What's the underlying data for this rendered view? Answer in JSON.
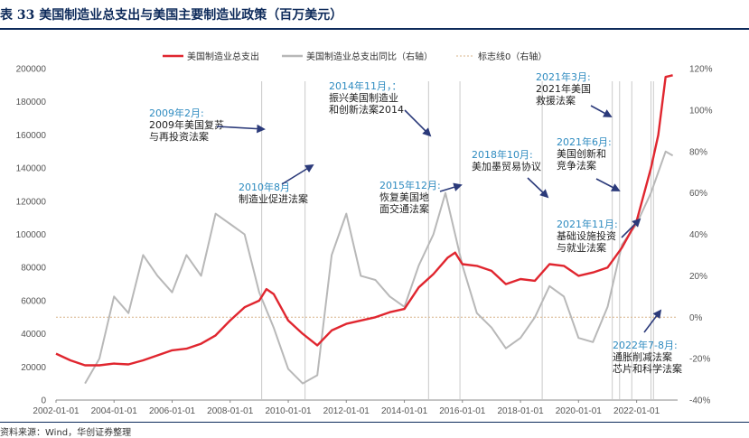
{
  "header": {
    "title": "表 33  美国制造业总支出与美国主要制造业政策（百万美元）",
    "source": "资料来源：Wind，华创证券整理"
  },
  "chart_data": {
    "type": "line",
    "title": "",
    "x_ticks": [
      "2002-01-01",
      "2004-01-01",
      "2006-01-01",
      "2008-01-01",
      "2010-01-01",
      "2012-01-01",
      "2014-01-01",
      "2016-01-01",
      "2018-01-01",
      "2020-01-01",
      "2022-01-01"
    ],
    "xlim": [
      "2002-01-01",
      "2023-06-01"
    ],
    "y_left": {
      "ticks": [
        0,
        20000,
        40000,
        60000,
        80000,
        100000,
        120000,
        140000,
        160000,
        180000,
        200000
      ],
      "lim": [
        0,
        200000
      ]
    },
    "y_right": {
      "ticks": [
        "-40%",
        "-20%",
        "0%",
        "20%",
        "40%",
        "60%",
        "80%",
        "100%",
        "120%"
      ],
      "lim": [
        -40,
        120
      ]
    },
    "legend": [
      "美国制造业总支出",
      "美国制造业总支出同比（右轴）",
      "标志线0（右轴）"
    ],
    "legend_position": "top-center",
    "series": [
      {
        "name": "美国制造业总支出",
        "axis": "left",
        "color": "#e0262f",
        "points": [
          [
            "2002-01-01",
            28000
          ],
          [
            "2002-07-01",
            24000
          ],
          [
            "2003-01-01",
            21000
          ],
          [
            "2003-07-01",
            21000
          ],
          [
            "2004-01-01",
            22000
          ],
          [
            "2004-07-01",
            21500
          ],
          [
            "2005-01-01",
            24000
          ],
          [
            "2005-07-01",
            27000
          ],
          [
            "2006-01-01",
            30000
          ],
          [
            "2006-07-01",
            31000
          ],
          [
            "2007-01-01",
            34000
          ],
          [
            "2007-07-01",
            39000
          ],
          [
            "2008-01-01",
            48000
          ],
          [
            "2008-07-01",
            56000
          ],
          [
            "2009-01-01",
            60000
          ],
          [
            "2009-04-01",
            67000
          ],
          [
            "2009-07-01",
            64000
          ],
          [
            "2010-01-01",
            48000
          ],
          [
            "2010-07-01",
            40000
          ],
          [
            "2011-01-01",
            33000
          ],
          [
            "2011-07-01",
            42000
          ],
          [
            "2012-01-01",
            46000
          ],
          [
            "2012-07-01",
            48000
          ],
          [
            "2013-01-01",
            50000
          ],
          [
            "2013-07-01",
            53000
          ],
          [
            "2014-01-01",
            55000
          ],
          [
            "2014-07-01",
            68000
          ],
          [
            "2015-01-01",
            76000
          ],
          [
            "2015-07-01",
            86000
          ],
          [
            "2015-10-01",
            89000
          ],
          [
            "2016-01-01",
            82000
          ],
          [
            "2016-07-01",
            81000
          ],
          [
            "2017-01-01",
            78000
          ],
          [
            "2017-07-01",
            70000
          ],
          [
            "2018-01-01",
            73000
          ],
          [
            "2018-07-01",
            72000
          ],
          [
            "2019-01-01",
            82000
          ],
          [
            "2019-07-01",
            81000
          ],
          [
            "2020-01-01",
            75000
          ],
          [
            "2020-07-01",
            77000
          ],
          [
            "2021-01-01",
            80000
          ],
          [
            "2021-07-01",
            92000
          ],
          [
            "2022-01-01",
            108000
          ],
          [
            "2022-07-01",
            140000
          ],
          [
            "2022-10-01",
            160000
          ],
          [
            "2023-01-01",
            195000
          ],
          [
            "2023-04-01",
            196000
          ]
        ]
      },
      {
        "name": "美国制造业总支出同比（右轴）",
        "axis": "right",
        "color": "#b8b8b8",
        "points": [
          [
            "2003-01-01",
            -32
          ],
          [
            "2003-07-01",
            -20
          ],
          [
            "2004-01-01",
            10
          ],
          [
            "2004-07-01",
            2
          ],
          [
            "2005-01-01",
            30
          ],
          [
            "2005-07-01",
            20
          ],
          [
            "2006-01-01",
            12
          ],
          [
            "2006-07-01",
            30
          ],
          [
            "2007-01-01",
            20
          ],
          [
            "2007-07-01",
            50
          ],
          [
            "2008-01-01",
            45
          ],
          [
            "2008-07-01",
            40
          ],
          [
            "2009-01-01",
            12
          ],
          [
            "2009-07-01",
            -5
          ],
          [
            "2010-01-01",
            -25
          ],
          [
            "2010-07-01",
            -32
          ],
          [
            "2011-01-01",
            -28
          ],
          [
            "2011-07-01",
            30
          ],
          [
            "2012-01-01",
            50
          ],
          [
            "2012-07-01",
            20
          ],
          [
            "2013-01-01",
            18
          ],
          [
            "2013-07-01",
            10
          ],
          [
            "2014-01-01",
            5
          ],
          [
            "2014-07-01",
            25
          ],
          [
            "2015-01-01",
            40
          ],
          [
            "2015-06-01",
            60
          ],
          [
            "2016-01-01",
            25
          ],
          [
            "2016-07-01",
            2
          ],
          [
            "2017-01-01",
            -5
          ],
          [
            "2017-07-01",
            -15
          ],
          [
            "2018-01-01",
            -10
          ],
          [
            "2018-07-01",
            0
          ],
          [
            "2019-01-01",
            15
          ],
          [
            "2019-07-01",
            10
          ],
          [
            "2020-01-01",
            -10
          ],
          [
            "2020-07-01",
            -12
          ],
          [
            "2021-01-01",
            5
          ],
          [
            "2021-07-01",
            35
          ],
          [
            "2022-01-01",
            45
          ],
          [
            "2022-07-01",
            60
          ],
          [
            "2023-01-01",
            80
          ],
          [
            "2023-04-01",
            78
          ]
        ]
      },
      {
        "name": "标志线0（右轴）",
        "axis": "right",
        "color": "#d8b48a",
        "points": [
          [
            "2002-01-01",
            0
          ],
          [
            "2023-06-01",
            0
          ]
        ]
      }
    ],
    "event_lines": [
      "2009-02-01",
      "2010-08-01",
      "2014-11-01",
      "2015-12-01",
      "2018-10-01",
      "2021-03-01",
      "2021-06-01",
      "2021-11-01",
      "2022-07-01",
      "2022-08-01"
    ],
    "annotations": [
      {
        "date": "2009-02-01",
        "year": "2009年2月:",
        "lines": [
          "2009年美国复苏",
          "与再投资法案"
        ]
      },
      {
        "date": "2010-08-01",
        "year": "2010年8月",
        "lines": [
          "制造业促进法案"
        ]
      },
      {
        "date": "2014-11-01",
        "year": "2014年11月，：",
        "lines": [
          "振兴美国制造业",
          "和创新法案2014"
        ]
      },
      {
        "date": "2015-12-01",
        "year": "2015年12月:",
        "lines": [
          "恢复美国地",
          "面交通法案"
        ]
      },
      {
        "date": "2018-10-01",
        "year": "2018年10月:",
        "lines": [
          "美加墨贸易协议"
        ]
      },
      {
        "date": "2021-03-01",
        "year": "2021年3月:",
        "lines": [
          "2021年美国",
          "救援法案"
        ]
      },
      {
        "date": "2021-06-01",
        "year": "2021年6月:",
        "lines": [
          "美国创新和",
          "竞争法案"
        ]
      },
      {
        "date": "2021-11-01",
        "year": "2021年11月:",
        "lines": [
          "基础设施投资",
          "与就业法案"
        ]
      },
      {
        "date": "2022-07-01",
        "year": "2022年7-8月:",
        "lines": [
          "通胀削减法案",
          "芯片和科学法案"
        ]
      }
    ]
  }
}
